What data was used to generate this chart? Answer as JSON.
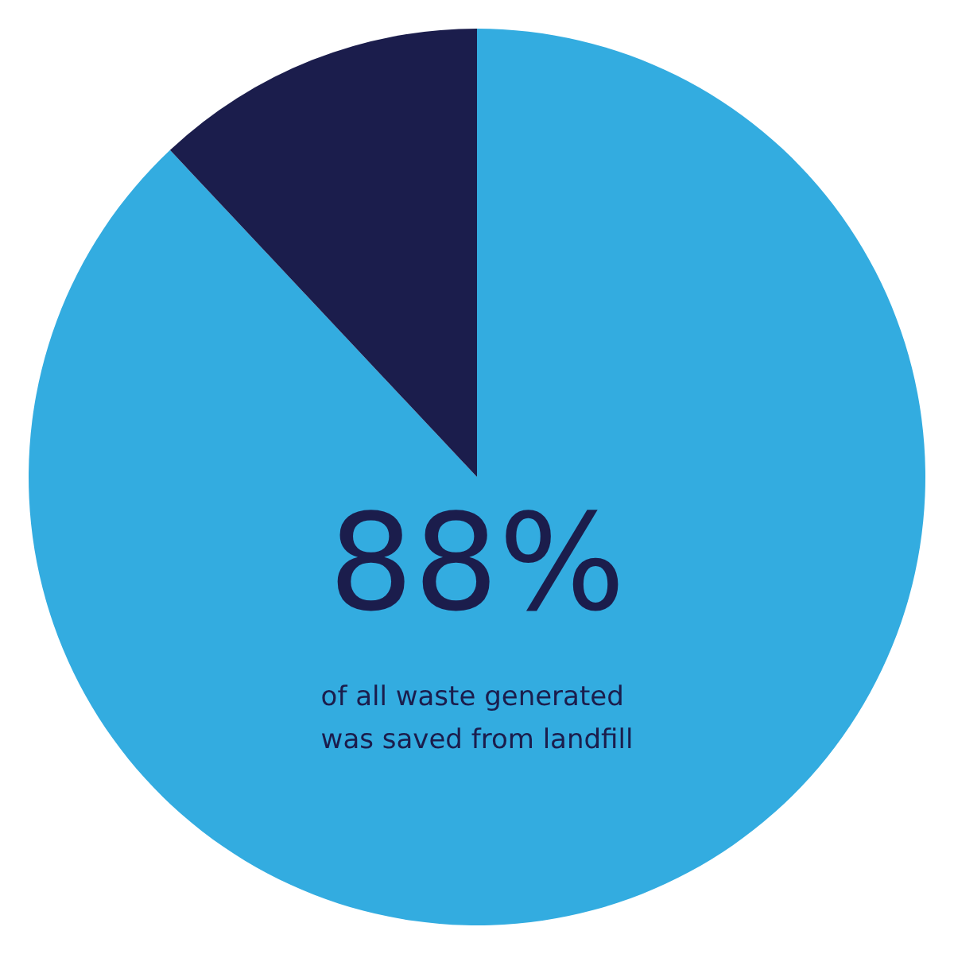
{
  "chart_data": {
    "type": "pie",
    "categories": [
      null,
      null
    ],
    "values": [
      88,
      12
    ],
    "colors": [
      "#33ace0",
      "#1b1d4c"
    ],
    "value_labels": [
      "88%",
      null
    ],
    "annotations": [
      "of all waste generated\nwas saved from landfill"
    ]
  }
}
